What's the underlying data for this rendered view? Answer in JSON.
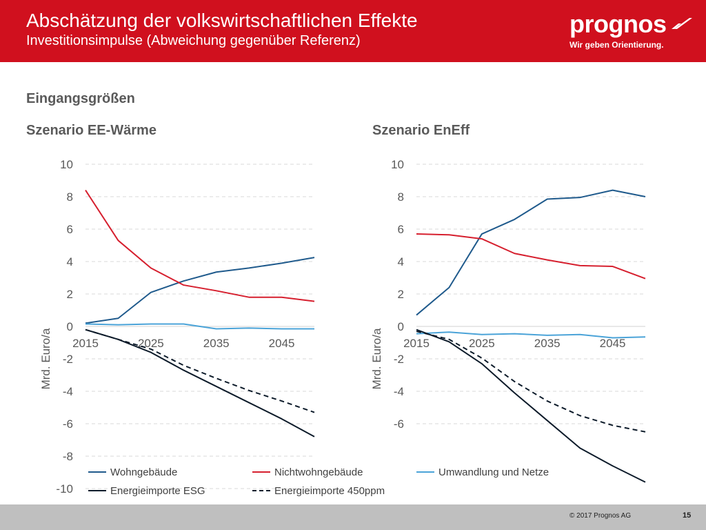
{
  "header": {
    "title": "Abschätzung der volkswirtschaftlichen Effekte",
    "subtitle": "Investitionsimpulse (Abweichung gegenüber Referenz)",
    "logo_text": "prognos",
    "logo_tagline": "Wir geben Orientierung."
  },
  "section_title": "Eingangsgrößen",
  "colors": {
    "brand": "#d0101e",
    "wohngebaeude": "#1f5a8c",
    "nichtwohngebaeude": "#d61f2e",
    "umwandlung": "#4aa3d8",
    "energieimporte": "#0d1b2a"
  },
  "legend": [
    {
      "label": "Wohngebäude",
      "color": "#1f5a8c",
      "dash": false
    },
    {
      "label": "Nichtwohngebäude",
      "color": "#d61f2e",
      "dash": false
    },
    {
      "label": "Umwandlung und Netze",
      "color": "#4aa3d8",
      "dash": false
    },
    {
      "label": "Energieimporte ESG",
      "color": "#0d1b2a",
      "dash": false
    },
    {
      "label": "Energieimporte 450ppm",
      "color": "#0d1b2a",
      "dash": true
    }
  ],
  "chart_data": [
    {
      "type": "line",
      "title": "Szenario EE-Wärme",
      "ylabel": "Mrd. Euro/a",
      "ylim": [
        -10,
        10
      ],
      "yticks": [
        10,
        8,
        6,
        4,
        2,
        0,
        -2,
        -4,
        -6,
        -8,
        -10
      ],
      "xlim": [
        2015,
        2050
      ],
      "xticks": [
        2015,
        2025,
        2035,
        2045
      ],
      "x": [
        2015,
        2020,
        2025,
        2030,
        2035,
        2040,
        2045,
        2050
      ],
      "series": [
        {
          "name": "Wohngebäude",
          "color": "#1f5a8c",
          "dash": false,
          "values": [
            0.2,
            0.5,
            2.1,
            2.8,
            3.35,
            3.6,
            3.9,
            4.25
          ]
        },
        {
          "name": "Nichtwohngebäude",
          "color": "#d61f2e",
          "dash": false,
          "values": [
            8.4,
            5.3,
            3.6,
            2.55,
            2.2,
            1.8,
            1.8,
            1.55
          ]
        },
        {
          "name": "Umwandlung und Netze",
          "color": "#4aa3d8",
          "dash": false,
          "values": [
            0.15,
            0.1,
            0.15,
            0.15,
            -0.15,
            -0.1,
            -0.15,
            -0.15
          ]
        },
        {
          "name": "Energieimporte ESG",
          "color": "#0d1b2a",
          "dash": false,
          "values": [
            -0.2,
            -0.8,
            -1.6,
            -2.7,
            -3.7,
            -4.7,
            -5.7,
            -6.8
          ]
        },
        {
          "name": "Energieimporte 450ppm",
          "color": "#0d1b2a",
          "dash": true,
          "values": [
            -0.2,
            -0.8,
            -1.4,
            -2.4,
            -3.2,
            -3.95,
            -4.6,
            -5.3
          ]
        }
      ]
    },
    {
      "type": "line",
      "title": "Szenario EnEff",
      "ylabel": "Mrd. Euro/a",
      "ylim": [
        -10,
        10
      ],
      "yticks": [
        10,
        8,
        6,
        4,
        2,
        0,
        -2,
        -4,
        -6
      ],
      "xlim": [
        2015,
        2050
      ],
      "xticks": [
        2015,
        2025,
        2035,
        2045
      ],
      "x": [
        2015,
        2020,
        2025,
        2030,
        2035,
        2040,
        2045,
        2050
      ],
      "series": [
        {
          "name": "Wohngebäude",
          "color": "#1f5a8c",
          "dash": false,
          "values": [
            0.7,
            2.4,
            5.7,
            6.6,
            7.85,
            7.95,
            8.4,
            8.0
          ]
        },
        {
          "name": "Nichtwohngebäude",
          "color": "#d61f2e",
          "dash": false,
          "values": [
            5.7,
            5.65,
            5.4,
            4.5,
            4.1,
            3.75,
            3.7,
            2.95
          ]
        },
        {
          "name": "Umwandlung und Netze",
          "color": "#4aa3d8",
          "dash": false,
          "values": [
            -0.45,
            -0.35,
            -0.5,
            -0.45,
            -0.55,
            -0.5,
            -0.7,
            -0.65
          ]
        },
        {
          "name": "Energieimporte ESG",
          "color": "#0d1b2a",
          "dash": false,
          "values": [
            -0.2,
            -0.95,
            -2.3,
            -4.1,
            -5.8,
            -7.5,
            -8.6,
            -9.6
          ]
        },
        {
          "name": "Energieimporte 450ppm",
          "color": "#0d1b2a",
          "dash": true,
          "values": [
            -0.3,
            -0.8,
            -1.95,
            -3.4,
            -4.6,
            -5.5,
            -6.1,
            -6.5
          ]
        }
      ]
    }
  ],
  "footer": {
    "copyright": "© 2017 Prognos AG",
    "page_number": "15"
  }
}
